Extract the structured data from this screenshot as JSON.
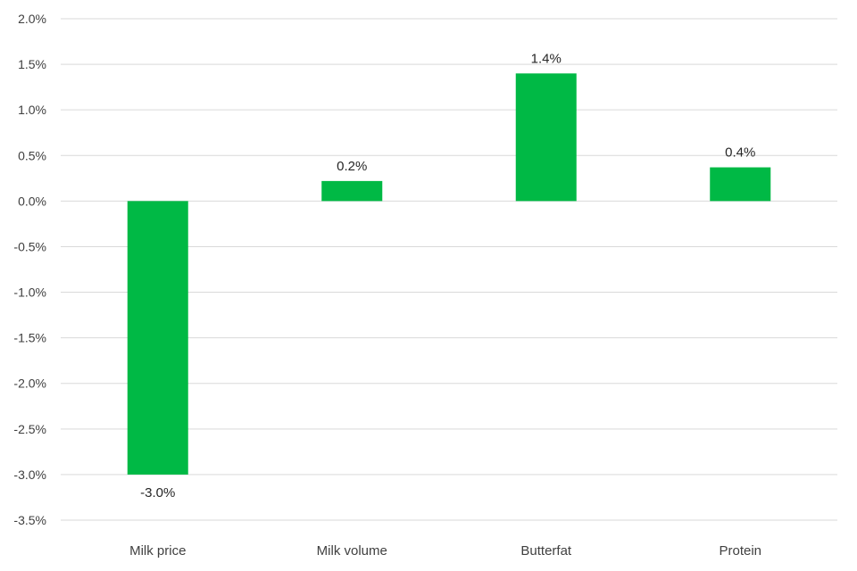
{
  "chart_data": {
    "type": "bar",
    "title": "",
    "xlabel": "",
    "ylabel": "",
    "categories": [
      "Milk price",
      "Milk volume",
      "Butterfat",
      "Protein"
    ],
    "values": [
      -3.0,
      0.2,
      1.4,
      0.4
    ],
    "plotted_values": [
      -3.0,
      0.22,
      1.4,
      0.37
    ],
    "data_labels": [
      "-3.0%",
      "0.2%",
      "1.4%",
      "0.4%"
    ],
    "ylim": [
      -3.5,
      2.0
    ],
    "yticks": [
      2.0,
      1.5,
      1.0,
      0.5,
      0.0,
      -0.5,
      -1.0,
      -1.5,
      -2.0,
      -2.5,
      -3.0,
      -3.5
    ],
    "ytick_labels": [
      "2.0%",
      "1.5%",
      "1.0%",
      "0.5%",
      "0.0%",
      "-0.5%",
      "-1.0%",
      "-1.5%",
      "-2.0%",
      "-2.5%",
      "-3.0%",
      "-3.5%"
    ],
    "grid": true,
    "legend": "none",
    "bar_color": "#00b945"
  }
}
